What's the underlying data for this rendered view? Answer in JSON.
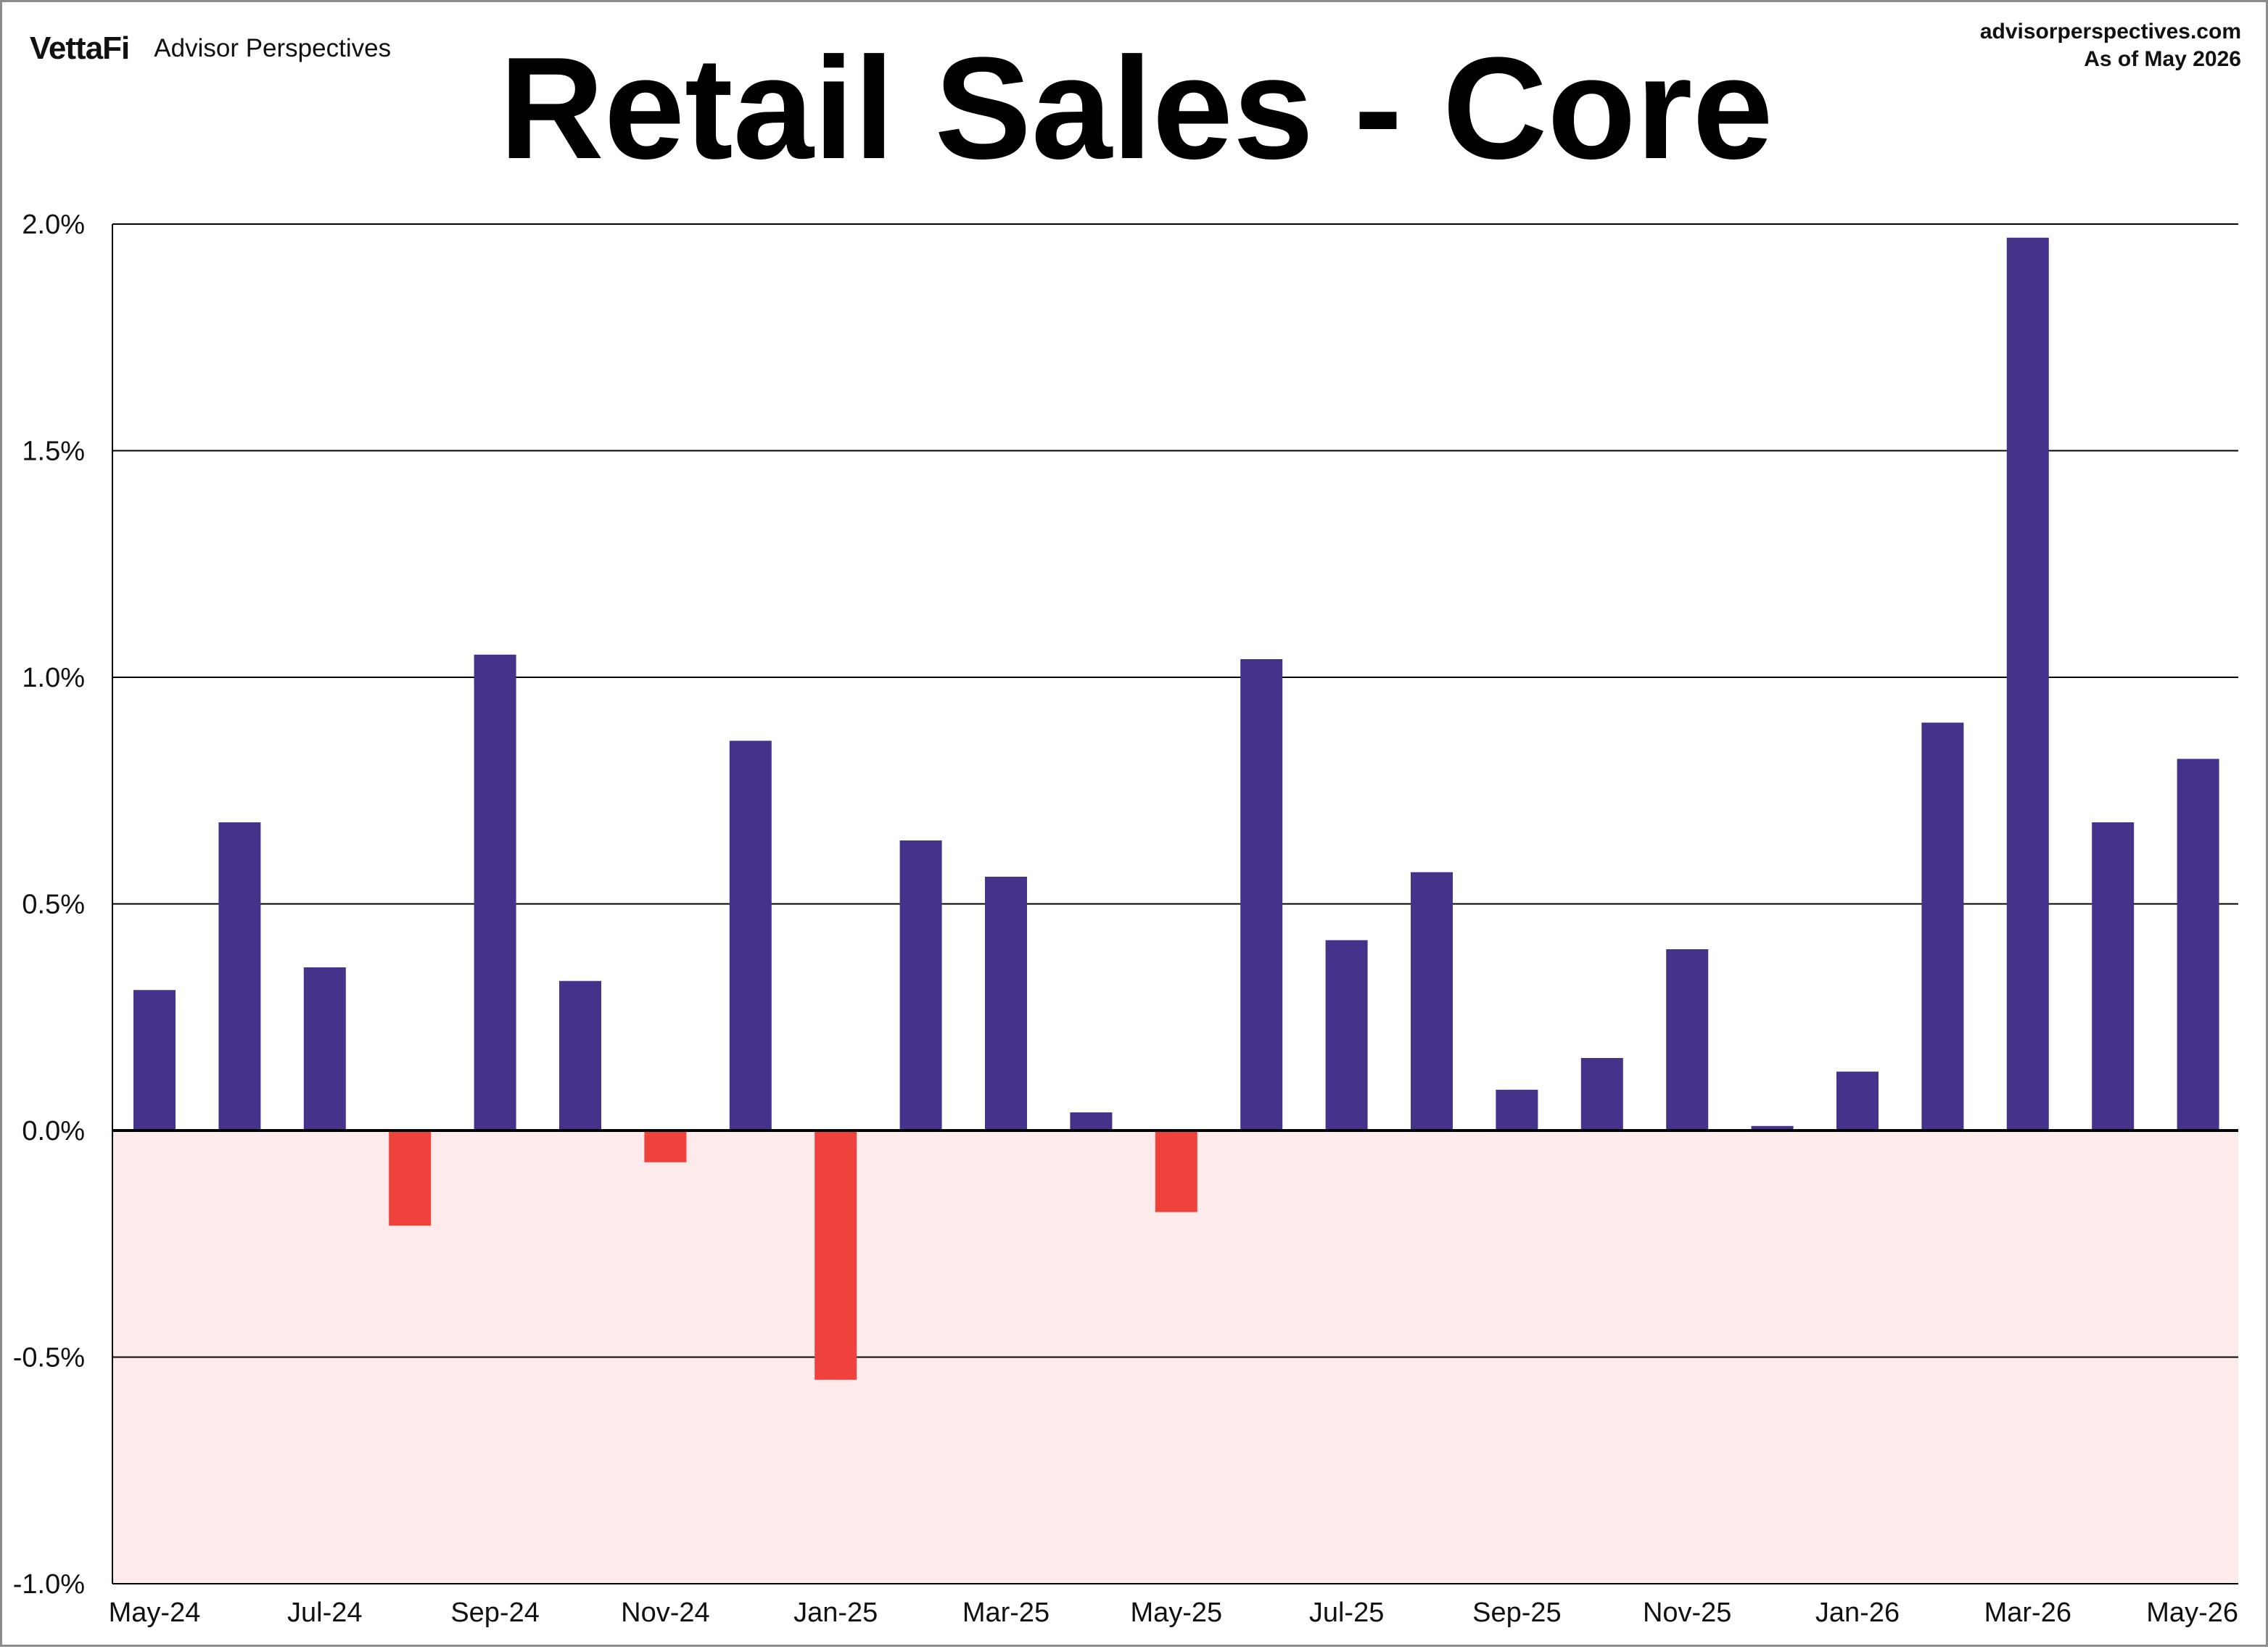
{
  "header": {
    "brand_logo": "VettaFi",
    "brand_name": "Advisor Perspectives",
    "source_url": "advisorperspectives.com",
    "as_of": "As of May 2026"
  },
  "colors": {
    "positive_bar": "#45338b",
    "negative_bar": "#ef423c",
    "negative_region": "#fdeaea",
    "gridline": "#000000"
  },
  "chart_data": {
    "type": "bar",
    "title": "Retail Sales - Core",
    "xlabel": "",
    "ylabel": "",
    "ylim": [
      -1.0,
      2.0
    ],
    "y_ticks": [
      -1.0,
      -0.5,
      0.0,
      0.5,
      1.0,
      1.5,
      2.0
    ],
    "y_tick_labels": [
      "-1.0%",
      "-0.5%",
      "0.0%",
      "0.5%",
      "1.0%",
      "1.5%",
      "2.0%"
    ],
    "grid": true,
    "negative_region_shaded": true,
    "categories": [
      "May-24",
      "Jun-24",
      "Jul-24",
      "Aug-24",
      "Sep-24",
      "Oct-24",
      "Nov-24",
      "Dec-24",
      "Jan-25",
      "Feb-25",
      "Mar-25",
      "Apr-25",
      "May-25",
      "Jun-25",
      "Jul-25",
      "Aug-25",
      "Sep-25",
      "Oct-25",
      "Nov-25",
      "Dec-25",
      "Jan-26",
      "Feb-26",
      "Mar-26",
      "Apr-26",
      "May-26"
    ],
    "x_tick_labels": [
      "May-24",
      "Jul-24",
      "Sep-24",
      "Nov-24",
      "Jan-25",
      "Mar-25",
      "May-25",
      "Jul-25",
      "Sep-25",
      "Nov-25",
      "Jan-26",
      "Mar-26",
      "May-26"
    ],
    "values": [
      0.31,
      0.68,
      0.36,
      -0.21,
      1.05,
      0.33,
      -0.07,
      0.86,
      -0.55,
      0.64,
      0.56,
      0.04,
      -0.18,
      1.04,
      0.42,
      0.57,
      0.09,
      0.16,
      0.4,
      0.01,
      0.13,
      0.9,
      1.97,
      0.68,
      0.82
    ]
  }
}
